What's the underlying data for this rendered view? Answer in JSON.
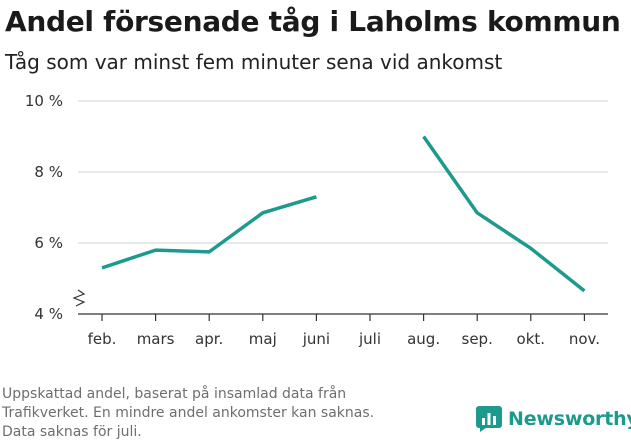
{
  "title": "Andel försenade tåg i Laholms kommun",
  "subtitle": "Tåg som var minst fem minuter sena vid ankomst",
  "note_lines": [
    "Uppskattad andel, baserat på insamlad data från",
    "Trafikverket. En mindre andel ankomster kan saknas.",
    "Data saknas för juli."
  ],
  "brand": {
    "name": "Newsworthy",
    "icon": "bar-chart-logo-icon",
    "color": "#1d9a8e"
  },
  "chart_data": {
    "type": "line",
    "categories": [
      "feb.",
      "mars",
      "apr.",
      "maj",
      "juni",
      "juli",
      "aug.",
      "sep.",
      "okt.",
      "nov."
    ],
    "series": [
      {
        "values": [
          5.3,
          5.8,
          5.75,
          6.85,
          7.3,
          null,
          9.0,
          6.85,
          5.85,
          4.65
        ],
        "color": "#1d9a8e"
      }
    ],
    "ylim": [
      4,
      10
    ],
    "y_ticks": [
      4,
      6,
      8,
      10
    ],
    "y_tick_labels": [
      "4 %",
      "6 %",
      "8 %",
      "10 %"
    ],
    "axis_break": true,
    "grid": true,
    "legend": "none"
  }
}
